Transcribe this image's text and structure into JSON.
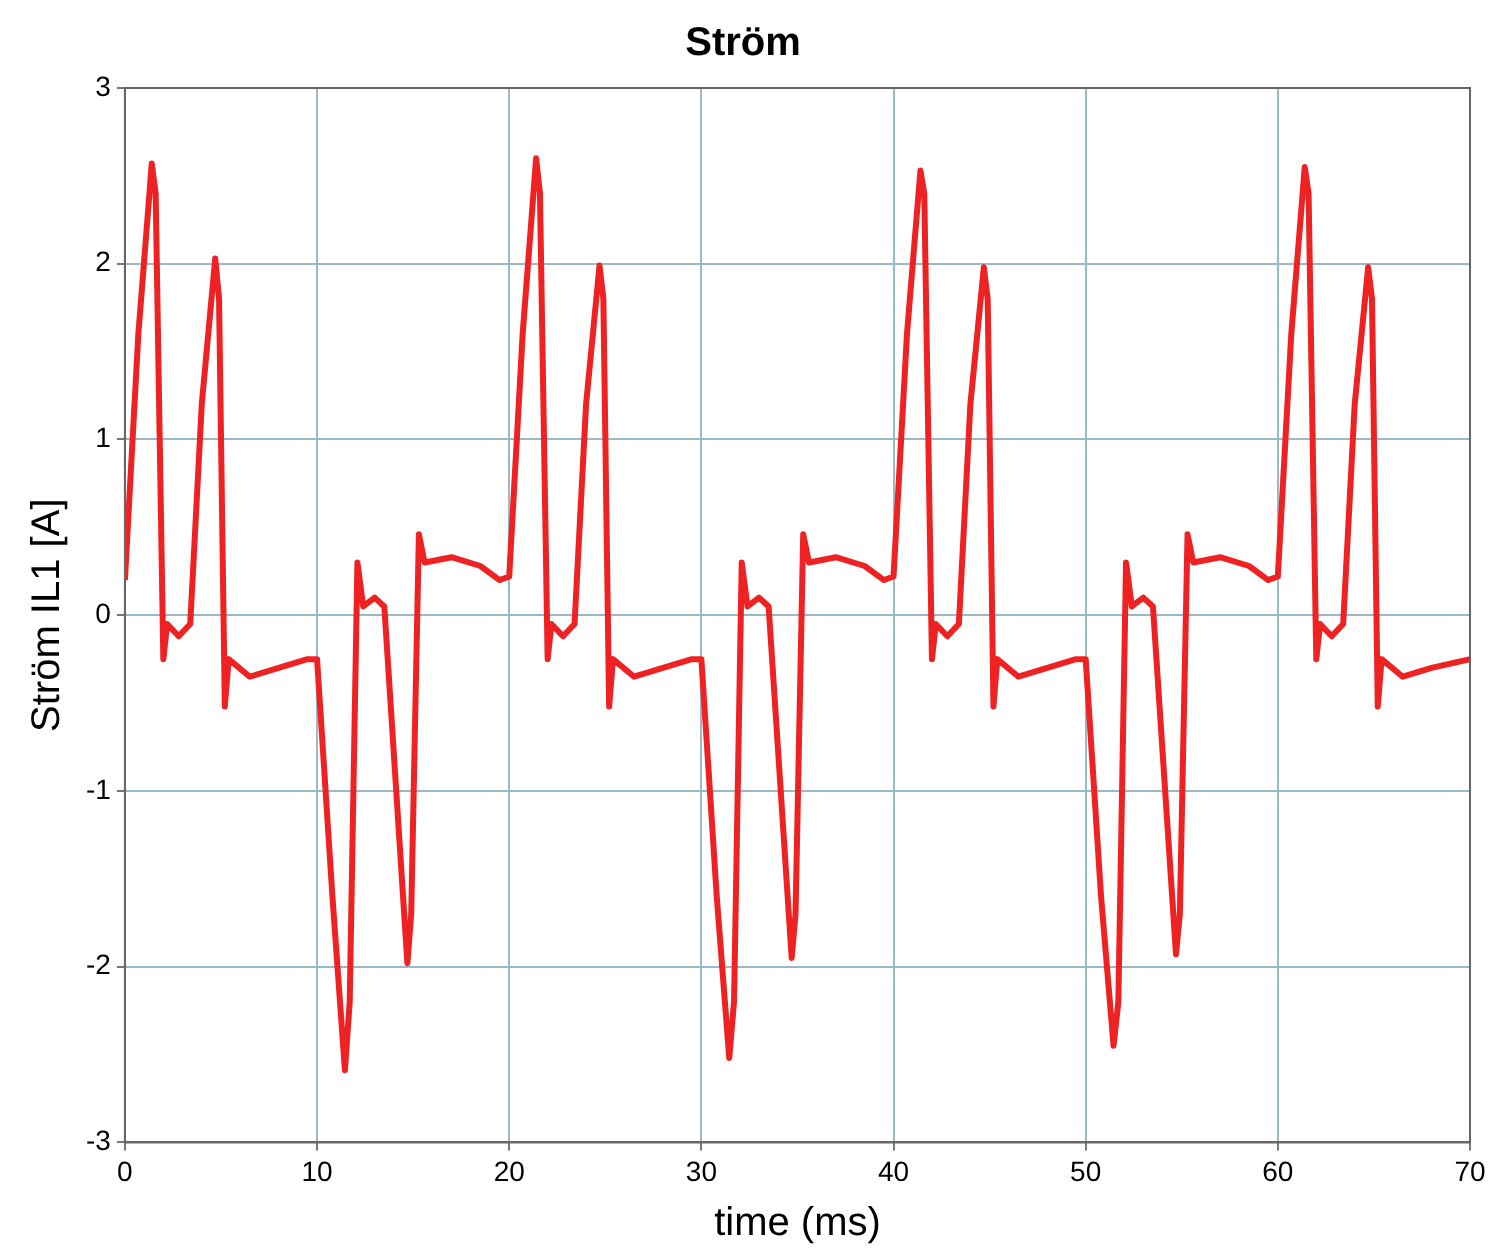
{
  "chart_data": {
    "type": "line",
    "title": "Ström",
    "xlabel": "time (ms)",
    "ylabel": "Ström IL1 [A]",
    "xlim": [
      0,
      70
    ],
    "xticks": [
      0,
      10,
      20,
      30,
      40,
      50,
      60,
      70
    ],
    "ylim": [
      -3,
      3
    ],
    "yticks": [
      -3,
      -2,
      -1,
      0,
      1,
      2,
      3
    ],
    "grid": true,
    "legend": false,
    "marker": "none",
    "line_style": "solid",
    "series": [
      {
        "color": "#ee2222",
        "x": [
          0,
          0.7,
          1.4,
          1.6,
          2.0,
          2.2,
          2.8,
          3.4,
          4.0,
          4.7,
          4.9,
          5.2,
          5.4,
          6.5,
          8,
          9.5,
          10,
          10.8,
          11.45,
          11.7,
          12.1,
          12.4,
          13,
          13.5,
          14.7,
          14.9,
          15.3,
          15.6,
          17,
          18.5,
          19.5,
          20,
          20.7,
          21.4,
          21.6,
          22.0,
          22.2,
          22.8,
          23.4,
          24.0,
          24.7,
          24.9,
          25.2,
          25.4,
          26.5,
          28,
          29.5,
          30,
          30.8,
          31.45,
          31.7,
          32.1,
          32.4,
          33,
          33.5,
          34.7,
          34.9,
          35.3,
          35.6,
          37,
          38.5,
          39.5,
          40,
          40.7,
          41.4,
          41.6,
          42.0,
          42.2,
          42.8,
          43.4,
          44.0,
          44.7,
          44.9,
          45.2,
          45.4,
          46.5,
          48,
          49.5,
          50,
          50.8,
          51.45,
          51.7,
          52.1,
          52.4,
          53,
          53.5,
          54.7,
          54.9,
          55.3,
          55.6,
          57,
          58.5,
          59.5,
          60,
          60.7,
          61.4,
          61.6,
          62.0,
          62.2,
          62.8,
          63.4,
          64.0,
          64.7,
          64.9,
          65.2,
          65.4,
          66.5,
          68,
          70
        ],
        "values": [
          0.2,
          1.6,
          2.57,
          2.4,
          -0.25,
          -0.05,
          -0.12,
          -0.05,
          1.2,
          2.03,
          1.8,
          -0.52,
          -0.25,
          -0.35,
          -0.3,
          -0.25,
          -0.25,
          -1.6,
          -2.59,
          -2.2,
          0.3,
          0.05,
          0.1,
          0.05,
          -1.98,
          -1.7,
          0.46,
          0.3,
          0.33,
          0.28,
          0.2,
          0.22,
          1.6,
          2.6,
          2.4,
          -0.25,
          -0.05,
          -0.12,
          -0.05,
          1.2,
          1.99,
          1.8,
          -0.52,
          -0.25,
          -0.35,
          -0.3,
          -0.25,
          -0.25,
          -1.6,
          -2.52,
          -2.2,
          0.3,
          0.05,
          0.1,
          0.05,
          -1.95,
          -1.7,
          0.46,
          0.3,
          0.33,
          0.28,
          0.2,
          0.22,
          1.6,
          2.53,
          2.4,
          -0.25,
          -0.05,
          -0.12,
          -0.05,
          1.2,
          1.98,
          1.8,
          -0.52,
          -0.25,
          -0.35,
          -0.3,
          -0.25,
          -0.25,
          -1.6,
          -2.45,
          -2.2,
          0.3,
          0.05,
          0.1,
          0.05,
          -1.93,
          -1.7,
          0.46,
          0.3,
          0.33,
          0.28,
          0.2,
          0.22,
          1.6,
          2.55,
          2.4,
          -0.25,
          -0.05,
          -0.12,
          -0.05,
          1.2,
          1.98,
          1.8,
          -0.52,
          -0.25,
          -0.35,
          -0.3,
          -0.25
        ]
      }
    ]
  }
}
